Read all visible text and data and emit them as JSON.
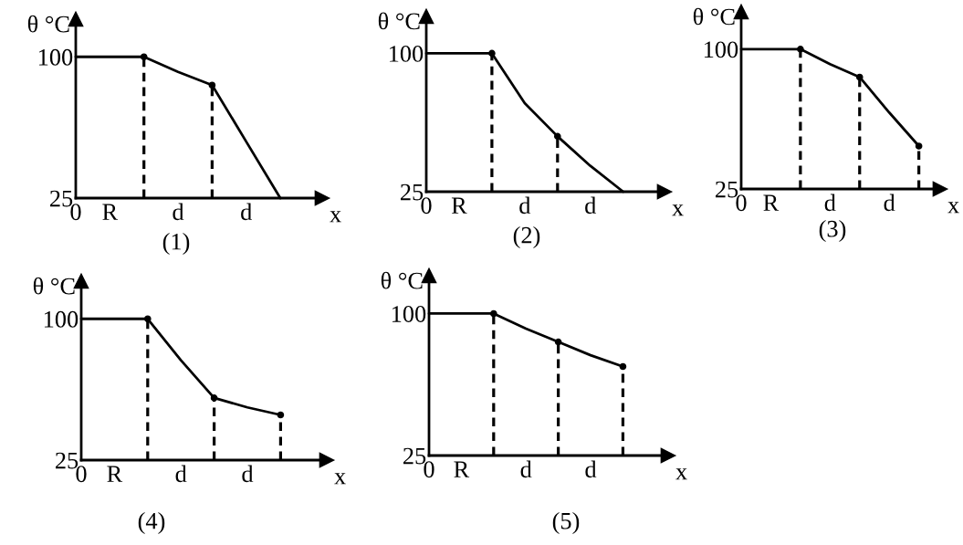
{
  "chart_data": [
    {
      "type": "line",
      "title": "(1)",
      "xlabel": "x",
      "ylabel": "θ °C",
      "categories": [
        "0",
        "R",
        null,
        "d",
        null,
        "d",
        null
      ],
      "ylim": [
        25,
        120
      ],
      "yticks": [
        25,
        100
      ],
      "series": [
        {
          "color": "#000000",
          "values": [
            100,
            100,
            100,
            92,
            85,
            55,
            25
          ]
        },
        {
          "type": "lollipop",
          "color": "#000000",
          "line_style": "dashed",
          "marker": "circle",
          "values": [
            null,
            null,
            100,
            null,
            85,
            null,
            null
          ]
        }
      ]
    },
    {
      "type": "line",
      "title": "(2)",
      "xlabel": "x",
      "ylabel": "θ °C",
      "categories": [
        "0",
        "R",
        null,
        "d",
        null,
        "d",
        null
      ],
      "ylim": [
        25,
        120
      ],
      "yticks": [
        25,
        100
      ],
      "series": [
        {
          "color": "#000000",
          "values": [
            100,
            100,
            100,
            73,
            55,
            39,
            25
          ]
        },
        {
          "type": "lollipop",
          "color": "#000000",
          "line_style": "dashed",
          "marker": "circle",
          "values": [
            null,
            null,
            100,
            null,
            55,
            null,
            null
          ]
        }
      ]
    },
    {
      "type": "line",
      "title": "(3)",
      "xlabel": "x",
      "ylabel": "θ °C",
      "categories": [
        "0",
        "R",
        null,
        "d",
        null,
        "d",
        null
      ],
      "ylim": [
        25,
        120
      ],
      "yticks": [
        25,
        100
      ],
      "series": [
        {
          "color": "#000000",
          "values": [
            100,
            100,
            100,
            92,
            85,
            66,
            48
          ]
        },
        {
          "type": "lollipop",
          "color": "#000000",
          "line_style": "dashed",
          "marker": "circle",
          "values": [
            null,
            null,
            100,
            null,
            85,
            null,
            48
          ]
        }
      ]
    },
    {
      "type": "line",
      "title": "(4)",
      "xlabel": "x",
      "ylabel": "θ °C",
      "categories": [
        "0",
        "R",
        null,
        "d",
        null,
        "d",
        null
      ],
      "ylim": [
        25,
        120
      ],
      "yticks": [
        25,
        100
      ],
      "series": [
        {
          "color": "#000000",
          "values": [
            100,
            100,
            100,
            78,
            58,
            53,
            49
          ]
        },
        {
          "type": "lollipop",
          "color": "#000000",
          "line_style": "dashed",
          "marker": "circle",
          "values": [
            null,
            null,
            100,
            null,
            58,
            null,
            49
          ]
        }
      ]
    },
    {
      "type": "line",
      "title": "(5)",
      "xlabel": "x",
      "ylabel": "θ °C",
      "categories": [
        "0",
        "R",
        null,
        "d",
        null,
        "d",
        null
      ],
      "ylim": [
        25,
        120
      ],
      "yticks": [
        25,
        100
      ],
      "series": [
        {
          "color": "#000000",
          "values": [
            100,
            100,
            100,
            92,
            85,
            78,
            72
          ]
        },
        {
          "type": "lollipop",
          "color": "#000000",
          "line_style": "dashed",
          "marker": "circle",
          "values": [
            null,
            null,
            100,
            null,
            85,
            null,
            72
          ]
        }
      ]
    }
  ]
}
